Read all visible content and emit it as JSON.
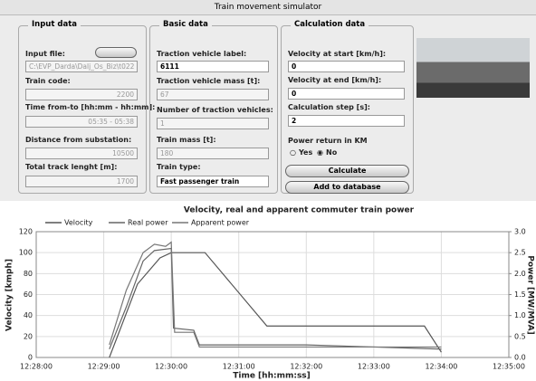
{
  "window": {
    "title": "Train movement simulator"
  },
  "groups": [
    {
      "title": "Input data",
      "fields": [
        {
          "label": "Input file:",
          "value": "C:\\EVP_Darda\\Dalj_Os_Biz\\t022"
        },
        {
          "label": "Train code:",
          "value": "2200"
        },
        {
          "label": "Time from-to [hh:mm - hh:mm]:",
          "value": "05:35 - 05:38"
        },
        {
          "label": "Distance from substation:",
          "value": "10500"
        },
        {
          "label": "Total track lenght [m]:",
          "value": "1700"
        }
      ]
    },
    {
      "title": "Basic data",
      "fields": [
        {
          "label": "Traction vehicle label:",
          "value": "6111"
        },
        {
          "label": "Traction vehicle mass [t]:",
          "value": "67"
        },
        {
          "label": "Number of traction vehicles:",
          "value": "1"
        },
        {
          "label": "Train mass [t]:",
          "value": "180"
        },
        {
          "label": "Train type:",
          "value": "Fast passenger train"
        }
      ]
    },
    {
      "title": "Calculation data",
      "fields": [
        {
          "label": "Velocity at start [km/h]:",
          "value": "0"
        },
        {
          "label": "Velocity at end [km/h]:",
          "value": "0"
        },
        {
          "label": "Calculation step [s]:",
          "value": "2"
        }
      ]
    }
  ],
  "power_return": {
    "label": "Power return in KM",
    "options": [
      "Yes",
      "No"
    ]
  },
  "buttons": [
    "Calculate",
    "Add to database"
  ],
  "chart_data": {
    "type": "line",
    "title": "Velocity, real and apparent commuter train power",
    "x_label": "Time [hh:mm:ss]",
    "y_label": "Velocity [kmph]",
    "y2_label": "Power [MW/MVA]",
    "xlim": [
      "12:28:00",
      "12:35:00"
    ],
    "xticks": [
      "12:28:00",
      "12:29:00",
      "12:30:00",
      "12:31:00",
      "12:32:00",
      "12:33:00",
      "12:34:00",
      "12:35:00"
    ],
    "ylim": [
      0,
      120
    ],
    "yticks": [
      0,
      20,
      40,
      60,
      80,
      100,
      120
    ],
    "y2lim": [
      0,
      3
    ],
    "y2ticks": [
      {
        "value": 0,
        "label": "0.0"
      },
      {
        "value": 0.5,
        "label": "0.5"
      },
      {
        "value": 1,
        "label": "1.0"
      },
      {
        "value": 1.5,
        "label": "1.5"
      },
      {
        "value": 2,
        "label": "2.0"
      },
      {
        "value": 2.5,
        "label": "2.5"
      },
      {
        "value": 3,
        "label": "3.0"
      }
    ],
    "series": [
      {
        "name": "Velocity",
        "color": "#555555",
        "x": [
          "12:29:05",
          "12:29:30",
          "12:29:50",
          "12:30:00",
          "12:30:30",
          "12:31:25",
          "12:33:45",
          "12:34:00"
        ],
        "values": [
          0,
          70,
          95,
          100,
          100,
          30,
          30,
          5
        ]
      },
      {
        "name": "Real power",
        "color": "#666666",
        "axis": "y2",
        "x": [
          "12:29:05",
          "12:29:20",
          "12:29:35",
          "12:29:45",
          "12:30:00",
          "12:30:02",
          "12:30:20",
          "12:30:25",
          "12:32:00",
          "12:34:00"
        ],
        "values": [
          0.2,
          1.2,
          2.3,
          2.55,
          2.6,
          0.7,
          0.65,
          0.3,
          0.3,
          0.2
        ]
      },
      {
        "name": "Apparent power",
        "color": "#777777",
        "axis": "y2",
        "x": [
          "12:29:05",
          "12:29:20",
          "12:29:35",
          "12:29:45",
          "12:29:55",
          "12:30:00",
          "12:30:03",
          "12:30:20",
          "12:30:25",
          "12:32:00",
          "12:34:00"
        ],
        "values": [
          0.3,
          1.6,
          2.5,
          2.7,
          2.65,
          2.75,
          0.6,
          0.6,
          0.25,
          0.25,
          0.25
        ]
      }
    ]
  }
}
